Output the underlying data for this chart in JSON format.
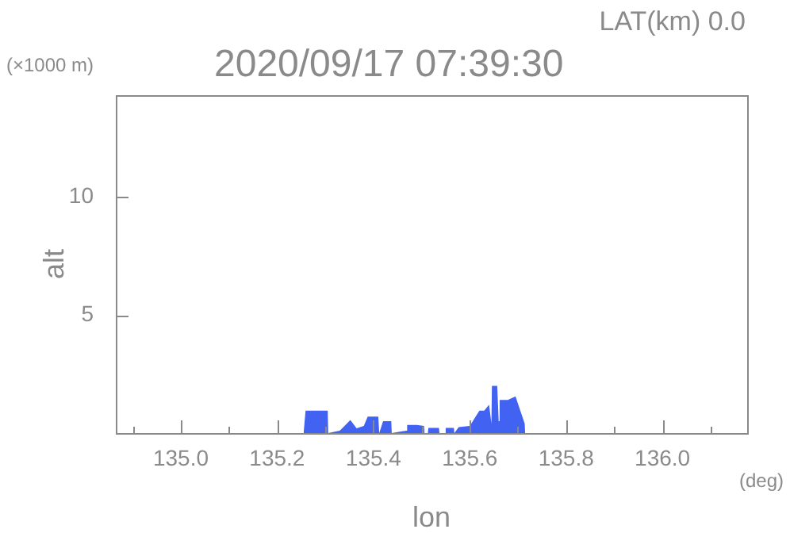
{
  "chart_data": {
    "type": "area",
    "title": "2020/09/17 07:39:30",
    "subtitle": "LAT(km) 0.0",
    "xlabel": "lon",
    "ylabel": "alt",
    "annotations": [
      "(×1000 m)",
      "(deg)"
    ],
    "series": [
      {
        "color": "#4262f2",
        "x": [
          135.255,
          135.259,
          135.305,
          135.306,
          135.33,
          135.34,
          135.352,
          135.365,
          135.38,
          135.388,
          135.41,
          135.412,
          135.42,
          135.437,
          135.438,
          135.468,
          135.47,
          135.49,
          135.505,
          135.506,
          135.513,
          135.514,
          135.536,
          135.537,
          135.549,
          135.55,
          135.567,
          135.568,
          135.577,
          135.6,
          135.62,
          135.63,
          135.64,
          135.645,
          135.646,
          135.657,
          135.66,
          135.662,
          135.679,
          135.695,
          135.714,
          135.715
        ],
        "values": [
          0,
          0.95,
          0.95,
          0,
          0.1,
          0.3,
          0.55,
          0.2,
          0.3,
          0.7,
          0.7,
          0,
          0.5,
          0.5,
          0,
          0.1,
          0.34,
          0.34,
          0.3,
          0,
          0,
          0.22,
          0.22,
          0,
          0,
          0.22,
          0.22,
          0,
          0.25,
          0.3,
          0.95,
          0.95,
          1.2,
          0.4,
          2.0,
          2.0,
          0.5,
          1.4,
          1.4,
          1.55,
          0.4,
          0
        ]
      }
    ],
    "xlim": [
      134.865,
      136.176
    ],
    "xticks": [
      {
        "value": 134.9,
        "label": null
      },
      {
        "value": 135,
        "label": "135.0"
      },
      {
        "value": 135.1,
        "label": null
      },
      135.2,
      {
        "value": 135.3,
        "label": null
      },
      135.4,
      {
        "value": 135.5,
        "label": null
      },
      135.6,
      {
        "value": 135.7,
        "label": null
      },
      135.8,
      {
        "value": 135.9,
        "label": null
      },
      {
        "value": 136,
        "label": "136.0"
      },
      {
        "value": 136.1,
        "label": null
      }
    ],
    "ylim": [
      0,
      14.3
    ],
    "yticks": [
      5,
      10
    ],
    "marker": "none"
  }
}
